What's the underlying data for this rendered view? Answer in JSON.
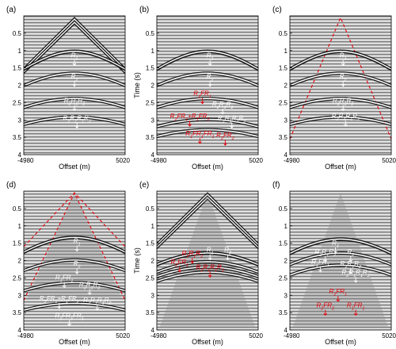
{
  "figure": {
    "x_axis": {
      "label": "Offset (m)",
      "min": -4980,
      "max": 5020,
      "tick_labels": [
        "-4980",
        "5020"
      ]
    },
    "y_axis": {
      "label": "Time (s)",
      "min": 0,
      "max": 4,
      "tick_labels": [
        "0.5",
        "1",
        "1.5",
        "2",
        "2.5",
        "3",
        "3.5",
        "4"
      ]
    },
    "colors": {
      "white_annotation": "#ffffff",
      "red_annotation": "#e8000b",
      "trace_dark": "#1a1a1a",
      "trace_light": "#bdbdbd"
    }
  },
  "panels": [
    {
      "id": "a",
      "panel_label": "(a)",
      "show_ylabel": false,
      "direct_wave": "strong",
      "events": [
        0.99,
        1.62,
        2.35,
        2.88
      ],
      "labels": [
        {
          "parts": [
            [
              "R",
              "1"
            ]
          ],
          "t": 1.2,
          "x": 0.0,
          "color": "white"
        },
        {
          "parts": [
            [
              "R",
              "2"
            ]
          ],
          "t": 1.8,
          "x": 0.0,
          "color": "white"
        },
        {
          "parts": [
            [
              "R",
              "2"
            ],
            [
              "R",
              "1"
            ],
            [
              "R",
              "2"
            ]
          ],
          "t": 2.5,
          "x": 0.0,
          "color": "white"
        },
        {
          "parts": [
            [
              "R",
              "2"
            ],
            [
              "R",
              "1"
            ],
            [
              "R",
              "1"
            ],
            [
              "R",
              "2"
            ]
          ],
          "t": 3.0,
          "x": 0.05,
          "color": "white"
        }
      ]
    },
    {
      "id": "b",
      "panel_label": "(b)",
      "show_ylabel": true,
      "direct_wave": "none",
      "events": [
        0.99,
        1.62,
        2.35,
        2.95,
        3.25
      ],
      "labels": [
        {
          "parts": [
            [
              "R",
              "1"
            ]
          ],
          "t": 1.2,
          "x": 0.05,
          "color": "white"
        },
        {
          "parts": [
            [
              "R",
              "2"
            ]
          ],
          "t": 1.8,
          "x": 0.05,
          "color": "white"
        },
        {
          "parts": [
            [
              "R",
              "2"
            ],
            [
              "F",
              "R",
              "1"
            ]
          ],
          "t": 2.3,
          "x": -0.1,
          "color": "red"
        },
        {
          "parts": [
            [
              "R",
              "2"
            ],
            [
              "R",
              "1"
            ],
            [
              "R",
              "2"
            ]
          ],
          "t": 2.6,
          "x": 0.3,
          "color": "white"
        },
        {
          "parts": [
            [
              "R",
              "2"
            ],
            [
              "F",
              "R",
              "1"
            ],
            [
              "+"
            ],
            [
              "R",
              "1"
            ],
            [
              "F",
              "R",
              "2"
            ]
          ],
          "t": 2.95,
          "x": -0.35,
          "color": "red"
        },
        {
          "parts": [
            [
              "R",
              "2"
            ],
            [
              "R",
              "1"
            ],
            [
              "R",
              "1"
            ],
            [
              "R",
              "2"
            ]
          ],
          "t": 3.0,
          "x": 0.48,
          "color": "white"
        },
        {
          "parts": [
            [
              "R",
              "1"
            ],
            [
              "F",
              "R",
              "1"
            ],
            [
              "F",
              "R",
              "1"
            ]
          ],
          "t": 3.45,
          "x": -0.15,
          "color": "red"
        },
        {
          "parts": [
            [
              "R",
              "2"
            ],
            [
              "F",
              "R",
              "2"
            ]
          ],
          "t": 3.5,
          "x": 0.35,
          "color": "red"
        }
      ]
    },
    {
      "id": "c",
      "panel_label": "(c)",
      "show_ylabel": false,
      "direct_wave": "muted-red",
      "events": [
        0.99,
        1.62,
        2.35,
        2.88
      ],
      "labels": [
        {
          "parts": [
            [
              "R",
              "1"
            ]
          ],
          "t": 1.2,
          "x": 0.05,
          "color": "white"
        },
        {
          "parts": [
            [
              "R",
              "2"
            ]
          ],
          "t": 1.8,
          "x": 0.05,
          "color": "white"
        },
        {
          "parts": [
            [
              "R",
              "2"
            ],
            [
              "R",
              "1"
            ],
            [
              "R",
              "2"
            ]
          ],
          "t": 2.5,
          "x": 0.05,
          "color": "white"
        },
        {
          "parts": [
            [
              "R",
              "2"
            ],
            [
              "R",
              "1"
            ],
            [
              "R",
              "1"
            ],
            [
              "R",
              "2"
            ]
          ],
          "t": 2.95,
          "x": 0.1,
          "color": "white"
        }
      ]
    },
    {
      "id": "d",
      "panel_label": "(d)",
      "show_ylabel": false,
      "direct_wave": "cone-red",
      "events": [
        1.3,
        1.95,
        2.6,
        3.2
      ],
      "labels": [
        {
          "parts": [
            [
              "R",
              "1"
            ]
          ],
          "t": 1.5,
          "x": 0.05,
          "color": "white"
        },
        {
          "parts": [
            [
              "R",
              "2"
            ]
          ],
          "t": 2.15,
          "x": 0.05,
          "color": "white"
        },
        {
          "parts": [
            [
              "R",
              "1"
            ],
            [
              "F",
              "R",
              "1"
            ]
          ],
          "t": 2.55,
          "x": -0.2,
          "color": "white"
        },
        {
          "parts": [
            [
              "R",
              "2"
            ],
            [
              "R",
              "1"
            ],
            [
              "R",
              "2"
            ]
          ],
          "t": 2.75,
          "x": 0.3,
          "color": "white"
        },
        {
          "parts": [
            [
              "R",
              "2"
            ],
            [
              "F",
              "R",
              "1"
            ],
            [
              "+"
            ],
            [
              "R",
              "1"
            ],
            [
              "F",
              "R",
              "2"
            ]
          ],
          "t": 3.15,
          "x": -0.3,
          "color": "white"
        },
        {
          "parts": [
            [
              "R",
              "2"
            ],
            [
              "R",
              "1"
            ],
            [
              "R",
              "1"
            ],
            [
              "R",
              "2"
            ]
          ],
          "t": 3.2,
          "x": 0.45,
          "color": "white"
        },
        {
          "parts": [
            [
              "R",
              "1"
            ],
            [
              "F",
              "R",
              "1"
            ],
            [
              "F",
              "R",
              "1"
            ]
          ],
          "t": 3.65,
          "x": -0.1,
          "color": "white"
        }
      ]
    },
    {
      "id": "e",
      "panel_label": "(e)",
      "show_ylabel": true,
      "direct_wave": "strong-cone",
      "events": [
        1.75,
        2.0,
        2.15,
        2.3
      ],
      "labels": [
        {
          "parts": [
            [
              "R",
              "2"
            ],
            [
              "R",
              "1"
            ],
            [
              "R",
              "2"
            ]
          ],
          "t": 1.85,
          "x": -0.3,
          "color": "red"
        },
        {
          "parts": [
            [
              "R",
              "1"
            ]
          ],
          "t": 1.75,
          "x": 0.05,
          "color": "white"
        },
        {
          "parts": [
            [
              "R",
              "2"
            ]
          ],
          "t": 1.75,
          "x": 0.4,
          "color": "white"
        },
        {
          "parts": [
            [
              "R",
              "2"
            ],
            [
              "F",
              "R",
              "1"
            ]
          ],
          "t": 2.1,
          "x": -0.55,
          "color": "red"
        },
        {
          "parts": [
            [
              "R",
              "2"
            ],
            [
              "R",
              "1"
            ],
            [
              "R",
              "1"
            ],
            [
              "R",
              "2"
            ]
          ],
          "t": 2.25,
          "x": 0.05,
          "color": "red"
        }
      ]
    },
    {
      "id": "f",
      "panel_label": "(f)",
      "show_ylabel": false,
      "direct_wave": "faint-cone",
      "events": [
        1.35,
        1.75,
        2.1
      ],
      "labels": [
        {
          "parts": [
            [
              "R",
              "1"
            ]
          ],
          "t": 1.55,
          "x": -0.1,
          "color": "white"
        },
        {
          "parts": [
            [
              "R",
              "2"
            ],
            [
              "R",
              "1"
            ],
            [
              "R",
              "2"
            ]
          ],
          "t": 1.8,
          "x": -0.3,
          "color": "white"
        },
        {
          "parts": [
            [
              "R",
              "2"
            ]
          ],
          "t": 1.8,
          "x": 0.2,
          "color": "white"
        },
        {
          "parts": [
            [
              "R",
              "1"
            ],
            [
              "F",
              "R",
              "1"
            ]
          ],
          "t": 2.1,
          "x": -0.4,
          "color": "white"
        },
        {
          "parts": [
            [
              "R",
              "2"
            ],
            [
              "R",
              "1"
            ],
            [
              "R",
              "2"
            ]
          ],
          "t": 2.15,
          "x": 0.2,
          "color": "white"
        },
        {
          "parts": [
            [
              "R",
              "2"
            ],
            [
              "R",
              "1"
            ],
            [
              "R",
              "1"
            ],
            [
              "R",
              "2"
            ]
          ],
          "t": 2.4,
          "x": 0.3,
          "color": "white"
        },
        {
          "parts": [
            [
              "R",
              "2"
            ],
            [
              "F",
              "R",
              "1"
            ]
          ],
          "t": 2.95,
          "x": -0.05,
          "color": "red"
        },
        {
          "parts": [
            [
              "R",
              "2"
            ],
            [
              "F",
              "R",
              "2"
            ]
          ],
          "t": 3.35,
          "x": -0.3,
          "color": "red"
        },
        {
          "parts": [
            [
              "R",
              "1"
            ],
            [
              "F",
              "R",
              "1"
            ]
          ],
          "t": 3.35,
          "x": 0.3,
          "color": "red"
        }
      ]
    }
  ]
}
